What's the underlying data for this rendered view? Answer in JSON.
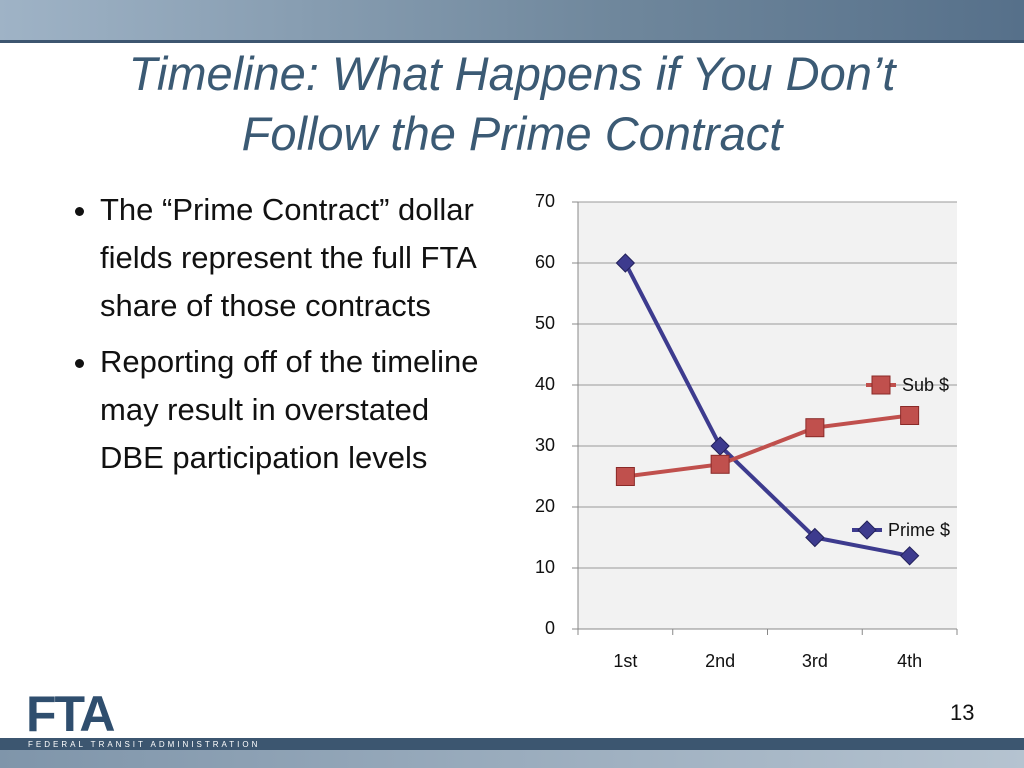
{
  "slide": {
    "title": "Timeline: What Happens if You Don’t Follow the Prime Contract",
    "bullets": [
      "The “Prime Contract” dollar fields represent the full FTA share of those contracts",
      "Reporting off of the timeline may result in overstated DBE participation levels"
    ],
    "page_number": "13",
    "logo": {
      "name": "FTA",
      "subtitle": "FEDERAL TRANSIT ADMINISTRATION"
    }
  },
  "chart_data": {
    "type": "line",
    "categories": [
      "1st",
      "2nd",
      "3rd",
      "4th"
    ],
    "series": [
      {
        "name": "Prime $",
        "color": "#3d3b8e",
        "marker": "diamond",
        "values": [
          60,
          30,
          15,
          12
        ]
      },
      {
        "name": "Sub $",
        "color": "#c0504d",
        "marker": "square",
        "values": [
          25,
          27,
          33,
          35
        ]
      }
    ],
    "ylim": [
      0,
      70
    ],
    "yticks": [
      0,
      10,
      20,
      30,
      40,
      50,
      60,
      70
    ],
    "grid": true,
    "legend": "right"
  }
}
